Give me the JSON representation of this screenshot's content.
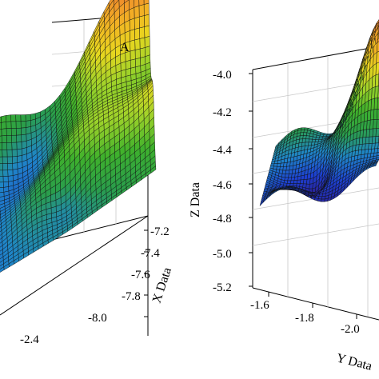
{
  "chart_data": [
    {
      "type": "surface",
      "panel_label": "A",
      "xlabel": "X Data",
      "x_ticks": [
        "-7.2",
        "-7.4",
        "-7.6",
        "-7.8",
        "-8.0"
      ],
      "y_ticks": [
        "-2.4"
      ],
      "zlabel": "",
      "grid": true
    },
    {
      "type": "surface",
      "panel_label": "",
      "zlabel": "Z Data",
      "z_ticks": [
        "-4.0",
        "-4.2",
        "-4.4",
        "-4.6",
        "-4.8",
        "-5.0",
        "-5.2"
      ],
      "ylabel": "Y Data",
      "y_ticks": [
        "-1.6",
        "-1.8",
        "-2.0"
      ],
      "zlim": [
        -5.2,
        -4.0
      ],
      "grid": true
    }
  ],
  "colormap": [
    "#2c1a8a",
    "#1d3fd0",
    "#1f86c8",
    "#2a9e4a",
    "#3fb12b",
    "#9bd22a",
    "#e9d71f",
    "#f2b324",
    "#f08a2c"
  ]
}
